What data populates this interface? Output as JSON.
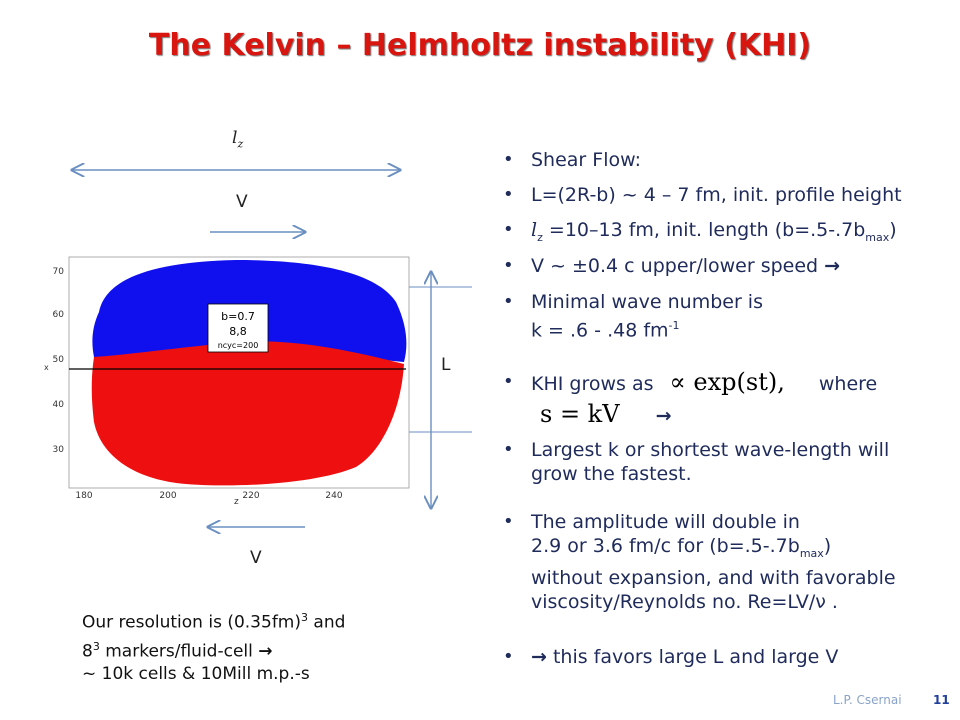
{
  "title": "The Kelvin – Helmholtz instability (KHI)",
  "figure": {
    "lz_symbol": "l",
    "lz_sub": "z",
    "v_top": "V",
    "v_bottom": "V",
    "l_label": "L",
    "legend_line1": "b=0.7",
    "legend_line2": "8,8",
    "legend_line3": "ncyc=200",
    "x_axis_label": "z",
    "y_axis_label": "x",
    "x_ticks": [
      "180",
      "200",
      "220",
      "240"
    ],
    "y_ticks": [
      "70",
      "60",
      "50",
      "40",
      "30"
    ],
    "colors": {
      "upper": "#1010ee",
      "lower": "#ee1010"
    }
  },
  "bullets": {
    "b1": "Shear Flow:",
    "b2": "L=(2R-b) ~ 4 – 7 fm, init. profile height",
    "b3_sym": "l",
    "b3_sub": "z",
    "b3_text": " =10–13 fm, init. length  (b=.5-.7b",
    "b3_sub2": "max",
    "b3_end": ")",
    "b4": "V  ~ ±0.4 c   upper/lower speed ",
    "b4_arrow": "→",
    "b5_line1": "Minimal wave number is",
    "b5_line2": "k = .6 - .48 fm",
    "b5_sup": "-1",
    "b6_text": "KHI grows as",
    "b6_formula": "∝ exp(st),",
    "b6_where": "where",
    "b6_formula2": "s = kV",
    "b6_arrow": "→",
    "b7_line1": "Largest k  or shortest wave-length will",
    "b7_line2": "grow the fastest.",
    "b8_line1": "The amplitude will double in",
    "b8_line2a": "2.9 or 3.6 fm/c for (b=.5-.7b",
    "b8_sub": "max",
    "b8_line2b": ")",
    "b8_line3": "without expansion, and with favorable",
    "b8_line4": "viscosity/Reynolds no.  Re=LV/ν .",
    "b9_arrow": "→",
    "b9_text": " this favors large L and large V"
  },
  "bottom_left": {
    "line1a": "Our resolution is (0.35fm)",
    "line1_sup": "3",
    "line1b": "  and",
    "line2a": "8",
    "line2_sup": "3",
    "line2b": " markers/fluid-cell ",
    "line2_arrow": "→",
    "line3": "~ 10k cells & 10Mill  m.p.-s"
  },
  "footer": {
    "author": "L.P. Csernai",
    "page": "11"
  }
}
